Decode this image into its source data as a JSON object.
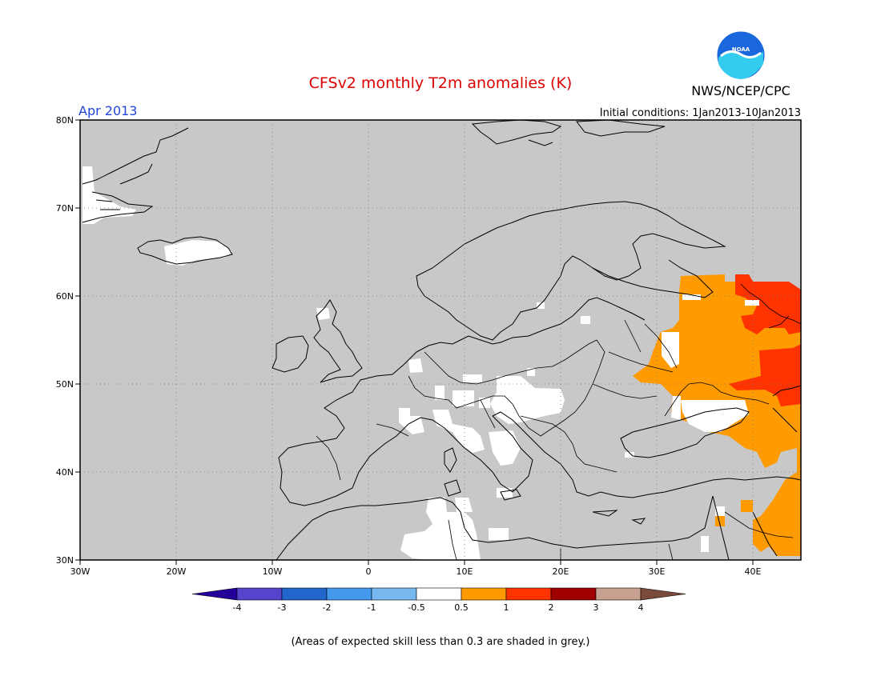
{
  "title": "CFSv2 monthly T2m anomalies (K)",
  "month": "Apr 2013",
  "initial_conditions": "Initial conditions: 1Jan2013-10Jan2013",
  "agency": "NWS/NCEP/CPC",
  "logo_text": "NOAA",
  "footnote": "(Areas of expected skill less than 0.3 are shaded in grey.)",
  "lat_labels": [
    "80N",
    "70N",
    "60N",
    "50N",
    "40N",
    "30N"
  ],
  "lon_labels": [
    "30W",
    "20W",
    "10W",
    "0",
    "10E",
    "20E",
    "30E",
    "40E"
  ],
  "colorbar": {
    "colors": [
      "#220099",
      "#5544cc",
      "#2266cc",
      "#4499ee",
      "#77b8f0",
      "#ffffff",
      "#ff9a00",
      "#ff3300",
      "#a00000",
      "#c8a090",
      "#7a4a3a"
    ],
    "labels": [
      "-4",
      "-3",
      "-2",
      "-1",
      "-0.5",
      "0.5",
      "1",
      "2",
      "3",
      "4"
    ]
  },
  "colors": {
    "title": "#dd0000",
    "month": "#2244dd",
    "skill_grey": "#c8c8c8",
    "neutral": "#ffffff",
    "warm1": "#ff9a00",
    "warm2": "#ff3300"
  }
}
